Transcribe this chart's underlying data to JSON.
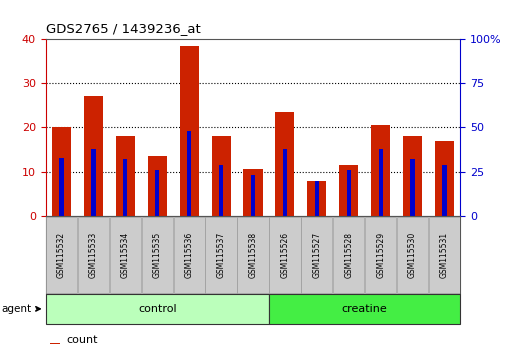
{
  "title": "GDS2765 / 1439236_at",
  "categories": [
    "GSM115532",
    "GSM115533",
    "GSM115534",
    "GSM115535",
    "GSM115536",
    "GSM115537",
    "GSM115538",
    "GSM115526",
    "GSM115527",
    "GSM115528",
    "GSM115529",
    "GSM115530",
    "GSM115531"
  ],
  "count_values": [
    20,
    27,
    18,
    13.5,
    38.5,
    18,
    10.5,
    23.5,
    8,
    11.5,
    20.5,
    18,
    17
  ],
  "percentile_values": [
    33,
    38,
    32,
    26,
    48,
    29,
    23,
    38,
    20,
    26,
    38,
    32,
    29
  ],
  "groups": [
    {
      "label": "control",
      "start": 0,
      "end": 7,
      "color": "#bbffbb"
    },
    {
      "label": "creatine",
      "start": 7,
      "end": 13,
      "color": "#44ee44"
    }
  ],
  "left_ylim": [
    0,
    40
  ],
  "right_ylim": [
    0,
    100
  ],
  "left_yticks": [
    0,
    10,
    20,
    30,
    40
  ],
  "right_yticks": [
    0,
    25,
    50,
    75,
    100
  ],
  "left_ycolor": "#cc0000",
  "right_ycolor": "#0000cc",
  "bar_color": "#cc2200",
  "percentile_color": "#0000cc",
  "grid_color": "#000000",
  "agent_label": "agent",
  "background_color": "#ffffff",
  "plot_bg": "#ffffff",
  "tick_area_bg": "#cccccc"
}
